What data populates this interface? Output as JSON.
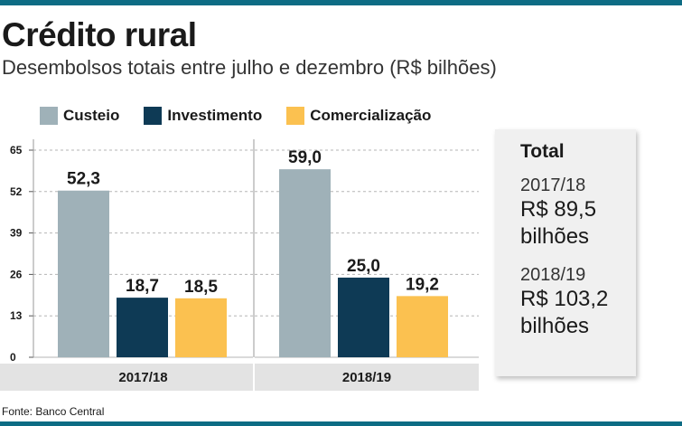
{
  "title": "Crédito rural",
  "subtitle": "Desembolsos totais entre julho e dezembro (R$ bilhões)",
  "source": "Fonte: Banco Central",
  "colors": {
    "Custeio": "#9fb1b8",
    "Investimento": "#0e3a55",
    "Comercialização": "#fbc150",
    "panel_bg": "#f0f0f0",
    "accent": "#0d6c84"
  },
  "chart_data": {
    "type": "bar",
    "categories": [
      "2017/18",
      "2018/19"
    ],
    "series": [
      {
        "name": "Custeio",
        "values": [
          52.3,
          59.0
        ]
      },
      {
        "name": "Investimento",
        "values": [
          18.7,
          25.0
        ]
      },
      {
        "name": "Comercialização",
        "values": [
          18.5,
          19.2
        ]
      }
    ],
    "value_labels": [
      [
        "52,3",
        "18,7",
        "18,5"
      ],
      [
        "59,0",
        "25,0",
        "19,2"
      ]
    ],
    "yticks": [
      "0",
      "13",
      "26",
      "39",
      "52",
      "65"
    ],
    "ytick_values": [
      0,
      13,
      26,
      39,
      52,
      65
    ],
    "ylim": [
      0,
      65
    ],
    "grid": true,
    "legend_position": "top"
  },
  "total": {
    "title": "Total",
    "items": [
      {
        "year": "2017/18",
        "value": "R$ 89,5 bilhões"
      },
      {
        "year": "2018/19",
        "value": "R$ 103,2 bilhões"
      }
    ]
  }
}
